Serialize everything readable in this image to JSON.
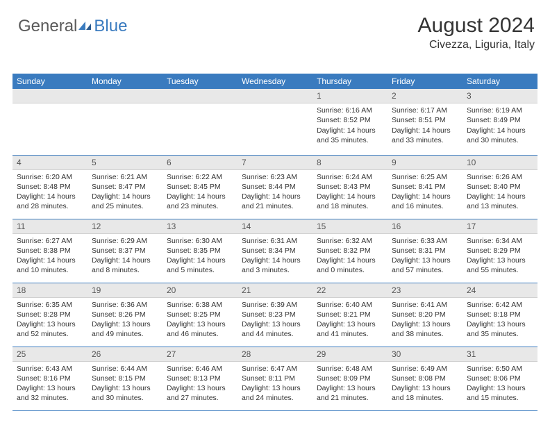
{
  "logo": {
    "part1": "General",
    "part2": "Blue"
  },
  "title": "August 2024",
  "location": "Civezza, Liguria, Italy",
  "colors": {
    "header_bg": "#3a7bbf",
    "header_text": "#ffffff",
    "daynum_bg": "#e8e8e8",
    "border": "#3a7bbf",
    "text": "#333333",
    "logo_gray": "#5a5a5a",
    "logo_blue": "#3a7bbf"
  },
  "weekdays": [
    "Sunday",
    "Monday",
    "Tuesday",
    "Wednesday",
    "Thursday",
    "Friday",
    "Saturday"
  ],
  "label_sunrise": "Sunrise: ",
  "label_sunset": "Sunset: ",
  "label_daylight_prefix": "Daylight: ",
  "empty_lead": 4,
  "days": [
    {
      "n": "1",
      "sunrise": "6:16 AM",
      "sunset": "8:52 PM",
      "daylight": "14 hours and 35 minutes."
    },
    {
      "n": "2",
      "sunrise": "6:17 AM",
      "sunset": "8:51 PM",
      "daylight": "14 hours and 33 minutes."
    },
    {
      "n": "3",
      "sunrise": "6:19 AM",
      "sunset": "8:49 PM",
      "daylight": "14 hours and 30 minutes."
    },
    {
      "n": "4",
      "sunrise": "6:20 AM",
      "sunset": "8:48 PM",
      "daylight": "14 hours and 28 minutes."
    },
    {
      "n": "5",
      "sunrise": "6:21 AM",
      "sunset": "8:47 PM",
      "daylight": "14 hours and 25 minutes."
    },
    {
      "n": "6",
      "sunrise": "6:22 AM",
      "sunset": "8:45 PM",
      "daylight": "14 hours and 23 minutes."
    },
    {
      "n": "7",
      "sunrise": "6:23 AM",
      "sunset": "8:44 PM",
      "daylight": "14 hours and 21 minutes."
    },
    {
      "n": "8",
      "sunrise": "6:24 AM",
      "sunset": "8:43 PM",
      "daylight": "14 hours and 18 minutes."
    },
    {
      "n": "9",
      "sunrise": "6:25 AM",
      "sunset": "8:41 PM",
      "daylight": "14 hours and 16 minutes."
    },
    {
      "n": "10",
      "sunrise": "6:26 AM",
      "sunset": "8:40 PM",
      "daylight": "14 hours and 13 minutes."
    },
    {
      "n": "11",
      "sunrise": "6:27 AM",
      "sunset": "8:38 PM",
      "daylight": "14 hours and 10 minutes."
    },
    {
      "n": "12",
      "sunrise": "6:29 AM",
      "sunset": "8:37 PM",
      "daylight": "14 hours and 8 minutes."
    },
    {
      "n": "13",
      "sunrise": "6:30 AM",
      "sunset": "8:35 PM",
      "daylight": "14 hours and 5 minutes."
    },
    {
      "n": "14",
      "sunrise": "6:31 AM",
      "sunset": "8:34 PM",
      "daylight": "14 hours and 3 minutes."
    },
    {
      "n": "15",
      "sunrise": "6:32 AM",
      "sunset": "8:32 PM",
      "daylight": "14 hours and 0 minutes."
    },
    {
      "n": "16",
      "sunrise": "6:33 AM",
      "sunset": "8:31 PM",
      "daylight": "13 hours and 57 minutes."
    },
    {
      "n": "17",
      "sunrise": "6:34 AM",
      "sunset": "8:29 PM",
      "daylight": "13 hours and 55 minutes."
    },
    {
      "n": "18",
      "sunrise": "6:35 AM",
      "sunset": "8:28 PM",
      "daylight": "13 hours and 52 minutes."
    },
    {
      "n": "19",
      "sunrise": "6:36 AM",
      "sunset": "8:26 PM",
      "daylight": "13 hours and 49 minutes."
    },
    {
      "n": "20",
      "sunrise": "6:38 AM",
      "sunset": "8:25 PM",
      "daylight": "13 hours and 46 minutes."
    },
    {
      "n": "21",
      "sunrise": "6:39 AM",
      "sunset": "8:23 PM",
      "daylight": "13 hours and 44 minutes."
    },
    {
      "n": "22",
      "sunrise": "6:40 AM",
      "sunset": "8:21 PM",
      "daylight": "13 hours and 41 minutes."
    },
    {
      "n": "23",
      "sunrise": "6:41 AM",
      "sunset": "8:20 PM",
      "daylight": "13 hours and 38 minutes."
    },
    {
      "n": "24",
      "sunrise": "6:42 AM",
      "sunset": "8:18 PM",
      "daylight": "13 hours and 35 minutes."
    },
    {
      "n": "25",
      "sunrise": "6:43 AM",
      "sunset": "8:16 PM",
      "daylight": "13 hours and 32 minutes."
    },
    {
      "n": "26",
      "sunrise": "6:44 AM",
      "sunset": "8:15 PM",
      "daylight": "13 hours and 30 minutes."
    },
    {
      "n": "27",
      "sunrise": "6:46 AM",
      "sunset": "8:13 PM",
      "daylight": "13 hours and 27 minutes."
    },
    {
      "n": "28",
      "sunrise": "6:47 AM",
      "sunset": "8:11 PM",
      "daylight": "13 hours and 24 minutes."
    },
    {
      "n": "29",
      "sunrise": "6:48 AM",
      "sunset": "8:09 PM",
      "daylight": "13 hours and 21 minutes."
    },
    {
      "n": "30",
      "sunrise": "6:49 AM",
      "sunset": "8:08 PM",
      "daylight": "13 hours and 18 minutes."
    },
    {
      "n": "31",
      "sunrise": "6:50 AM",
      "sunset": "8:06 PM",
      "daylight": "13 hours and 15 minutes."
    }
  ]
}
